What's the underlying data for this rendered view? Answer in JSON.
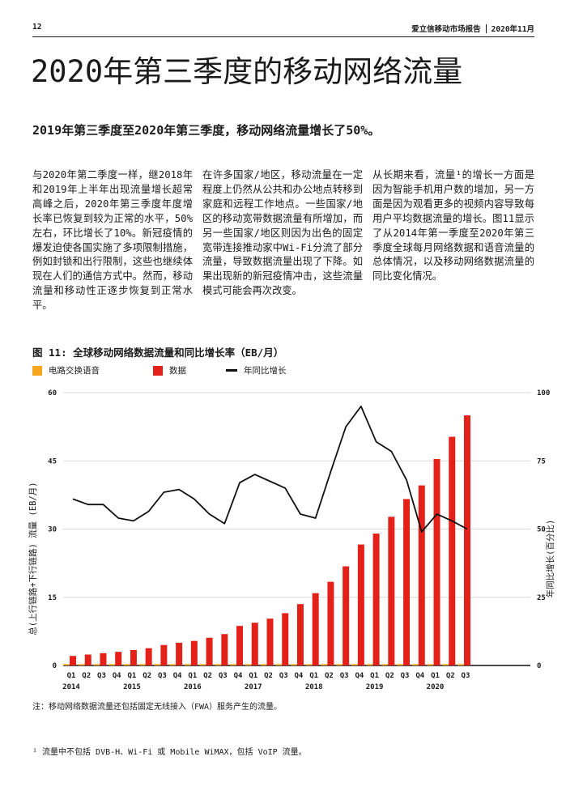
{
  "header": {
    "page_number": "12",
    "report_title": "爱立信移动市场报告",
    "report_date": "2020年11月"
  },
  "page": {
    "title": "2020年第三季度的移动网络流量",
    "subtitle": "2019年第三季度至2020年第三季度，移动网络流量增长了50%。",
    "columns": [
      "与2020年第二季度一样，继2018年和2019年上半年出现流量增长超常高峰之后，2020年第三季度年度增长率已恢复到较为正常的水平，50%左右，环比增长了10%。新冠疫情的爆发迫使各国实施了多项限制措施，例如封锁和出行限制，这些也继续体现在人们的通信方式中。然而，移动流量和移动性正逐步恢复到正常水平。",
      "在许多国家/地区，移动流量在一定程度上仍然从公共和办公地点转移到家庭和远程工作地点。一些国家/地区的移动宽带数据流量有所增加，而另一些国家/地区则因为出色的固定宽带连接推动家中Wi-Fi分流了部分流量，导致数据流量出现了下降。如果出现新的新冠疫情冲击，这些流量模式可能会再次改变。",
      "从长期来看，流量¹的增长一方面是因为智能手机用户数的增加，另一方面是因为观看更多的视频内容导致每用户平均数据流量的增长。图11显示了从2014年第一季度至2020年第三季度全球每月网络数据和语音流量的总体情况，以及移动网络数据流量的同比变化情况。"
    ],
    "note": "注：移动网络数据流量还包括固定无线接入（FWA）服务产生的流量。",
    "footnote": "¹ 流量中不包括 DVB-H、Wi-Fi 或 Mobile WiMAX，包括 VoIP 流量。"
  },
  "chart_data": {
    "type": "bar+line",
    "title": "图 11: 全球移动网络数据流量和同比增长率（EB/月）",
    "legend": [
      {
        "label": "电路交换语音",
        "color": "#F5A51E",
        "marker": "square"
      },
      {
        "label": "数据",
        "color": "#E32119",
        "marker": "square"
      },
      {
        "label": "年同比增长",
        "color": "#111111",
        "marker": "line"
      }
    ],
    "ylabel_left": "总(上行链路+下行链路) 流量 (EB/月)",
    "ylabel_right": "年同比增长(百分比)",
    "yticks_left": [
      0,
      15,
      30,
      45,
      60
    ],
    "yticks_right": [
      0,
      25,
      50,
      75,
      100
    ],
    "ylim_left": [
      0,
      60
    ],
    "ylim_right": [
      0,
      100
    ],
    "grid": "horizontal",
    "legend_position": "top",
    "quarter_labels": [
      "Q1",
      "Q2",
      "Q3",
      "Q4",
      "Q1",
      "Q2",
      "Q3",
      "Q4",
      "Q1",
      "Q2",
      "Q3",
      "Q4",
      "Q1",
      "Q2",
      "Q3",
      "Q4",
      "Q1",
      "Q2",
      "Q3",
      "Q4",
      "Q1",
      "Q2",
      "Q3",
      "Q4",
      "Q1",
      "Q2",
      "Q3"
    ],
    "year_labels": [
      {
        "index": 0,
        "label": "2014"
      },
      {
        "index": 4,
        "label": "2015"
      },
      {
        "index": 8,
        "label": "2016"
      },
      {
        "index": 12,
        "label": "2017"
      },
      {
        "index": 16,
        "label": "2018"
      },
      {
        "index": 20,
        "label": "2019"
      },
      {
        "index": 24,
        "label": "2020"
      }
    ],
    "series": [
      {
        "name": "电路交换语音",
        "type": "bar",
        "axis": "left",
        "color": "#F5A51E",
        "values": [
          0.3,
          0.3,
          0.3,
          0.3,
          0.3,
          0.3,
          0.3,
          0.3,
          0.3,
          0.3,
          0.3,
          0.3,
          0.3,
          0.3,
          0.3,
          0.3,
          0.3,
          0.3,
          0.3,
          0.3,
          0.3,
          0.3,
          0.3,
          0.3,
          0.3,
          0.3,
          0.3
        ]
      },
      {
        "name": "数据",
        "type": "bar",
        "axis": "left",
        "color": "#E32119",
        "values": [
          2.1,
          2.4,
          2.7,
          3.0,
          3.4,
          3.8,
          4.5,
          5.0,
          5.4,
          6.1,
          6.9,
          8.7,
          9.4,
          10.3,
          11.5,
          13.5,
          15.9,
          18.4,
          21.8,
          26.6,
          29.0,
          32.7,
          36.6,
          39.6,
          45.4,
          50.3,
          55.0
        ]
      },
      {
        "name": "年同比增长",
        "type": "line",
        "axis": "right",
        "color": "#111111",
        "values": [
          61,
          59,
          59,
          54,
          53,
          56.5,
          63.5,
          64.5,
          61,
          55.5,
          52,
          67,
          70,
          67.5,
          65,
          55.5,
          54,
          71,
          87.5,
          95,
          82,
          78.5,
          68,
          49,
          55.5,
          53,
          50
        ]
      }
    ]
  }
}
